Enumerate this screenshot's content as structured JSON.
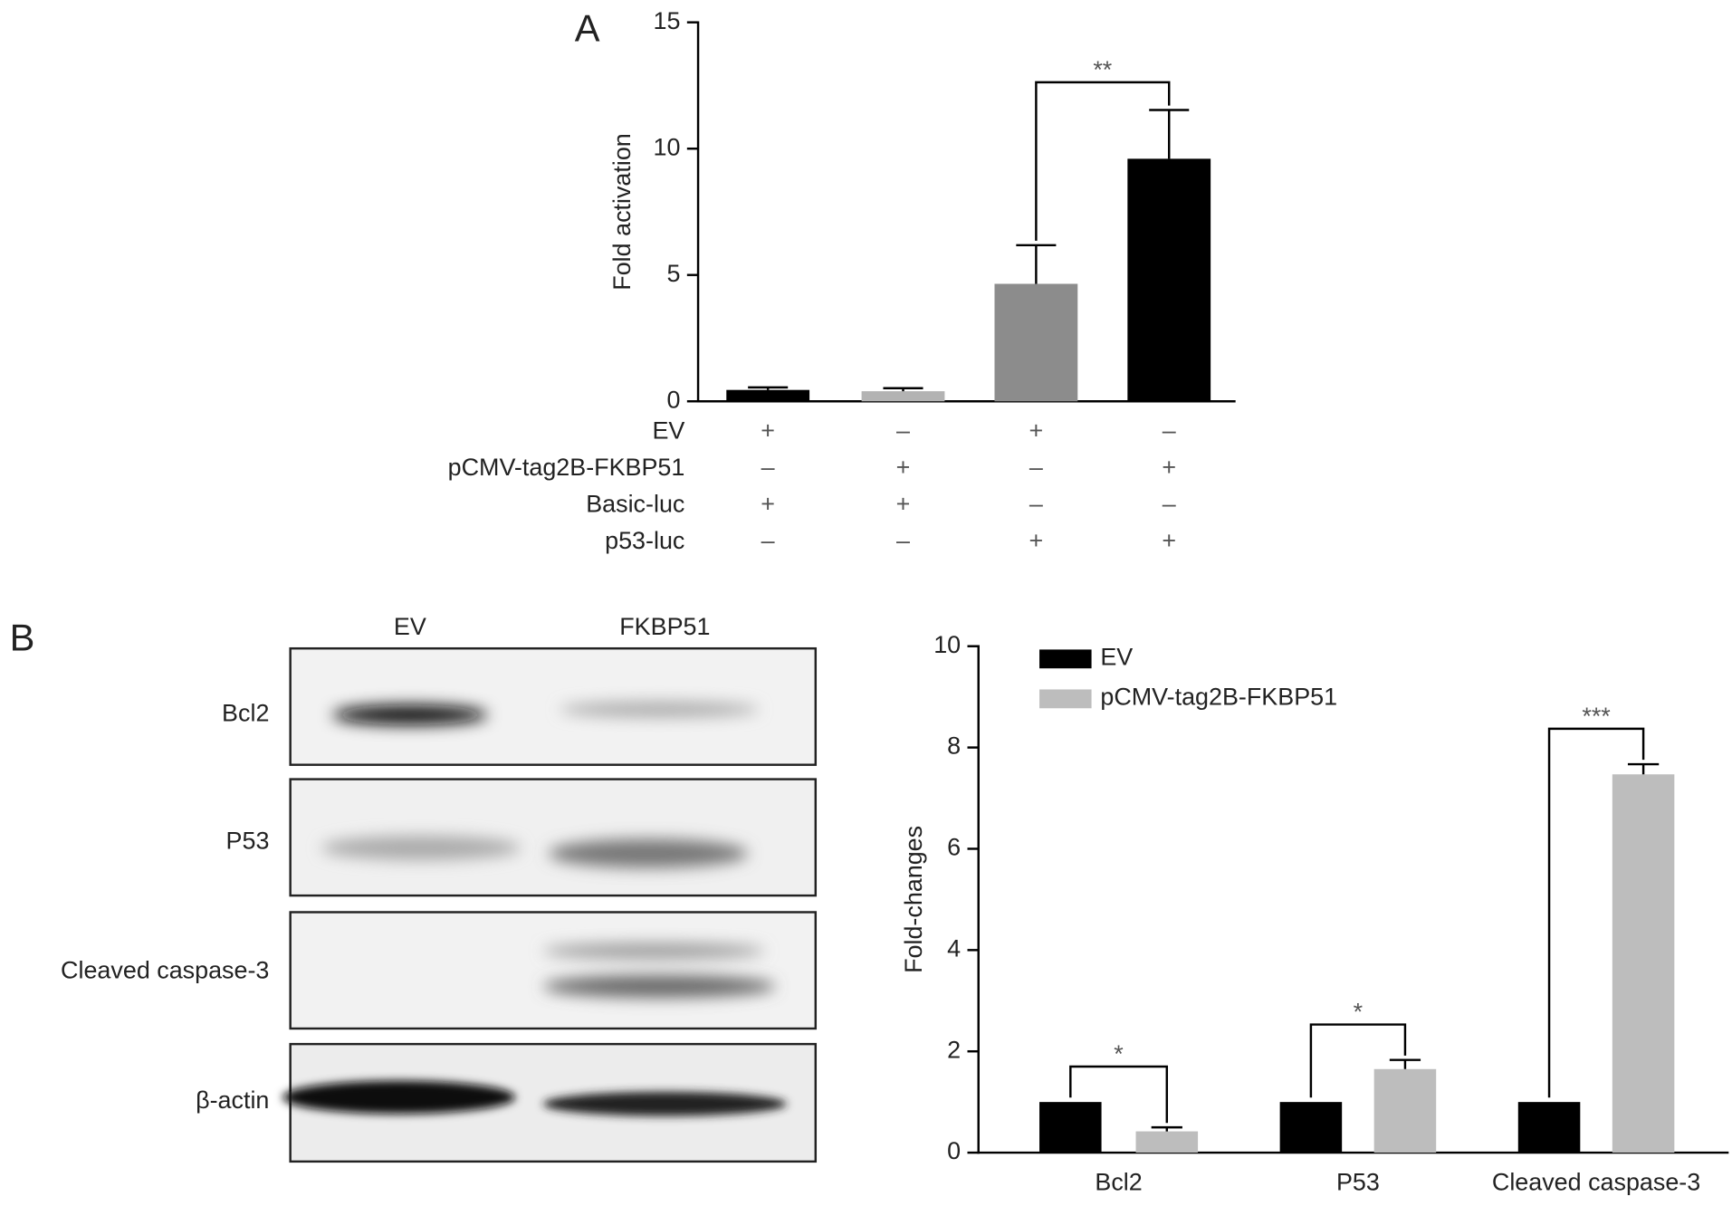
{
  "chart_data": [
    {
      "type": "bar",
      "panel_label": "A",
      "ylabel": "Fold activation",
      "values": [
        0.45,
        0.4,
        4.65,
        9.6
      ],
      "errors": [
        0.1,
        0.12,
        1.53,
        1.93
      ],
      "colors": [
        "#000000",
        "#b3b3b3",
        "#8c8c8c",
        "#000000"
      ],
      "ylim": [
        0,
        15
      ],
      "yticks": [
        0,
        5,
        10,
        15
      ],
      "annotations": [
        "**"
      ],
      "conditions": [
        {
          "label": "EV",
          "marks": [
            "+",
            "–",
            "+",
            "–"
          ]
        },
        {
          "label": "pCMV-tag2B-FKBP51",
          "marks": [
            "–",
            "+",
            "–",
            "+"
          ]
        },
        {
          "label": "Basic-luc",
          "marks": [
            "+",
            "+",
            "–",
            "–"
          ]
        },
        {
          "label": "p53-luc",
          "marks": [
            "–",
            "–",
            "+",
            "+"
          ]
        }
      ]
    },
    {
      "type": "grouped_bar",
      "ylabel": "Fold-changes",
      "categories": [
        "Bcl2",
        "P53",
        "Cleaved caspase-3"
      ],
      "series": [
        {
          "name": "EV",
          "color": "#000000",
          "values": [
            1,
            1,
            1
          ],
          "errors": [
            0,
            0,
            0
          ]
        },
        {
          "name": "pCMV-tag2B-FKBP51",
          "color": "#bdbdbd",
          "values": [
            0.42,
            1.65,
            7.47
          ],
          "errors": [
            0.08,
            0.18,
            0.2
          ]
        }
      ],
      "ylim": [
        0,
        10
      ],
      "yticks": [
        0,
        2,
        4,
        6,
        8,
        10
      ],
      "annotations": [
        "*",
        "*",
        "***"
      ],
      "legend": "upper left"
    }
  ],
  "blot": {
    "panel_label": "B",
    "lanes": [
      "EV",
      "FKBP51"
    ],
    "rows": [
      "Bcl2",
      "P53",
      "Cleaved caspase-3",
      "β-actin"
    ]
  }
}
